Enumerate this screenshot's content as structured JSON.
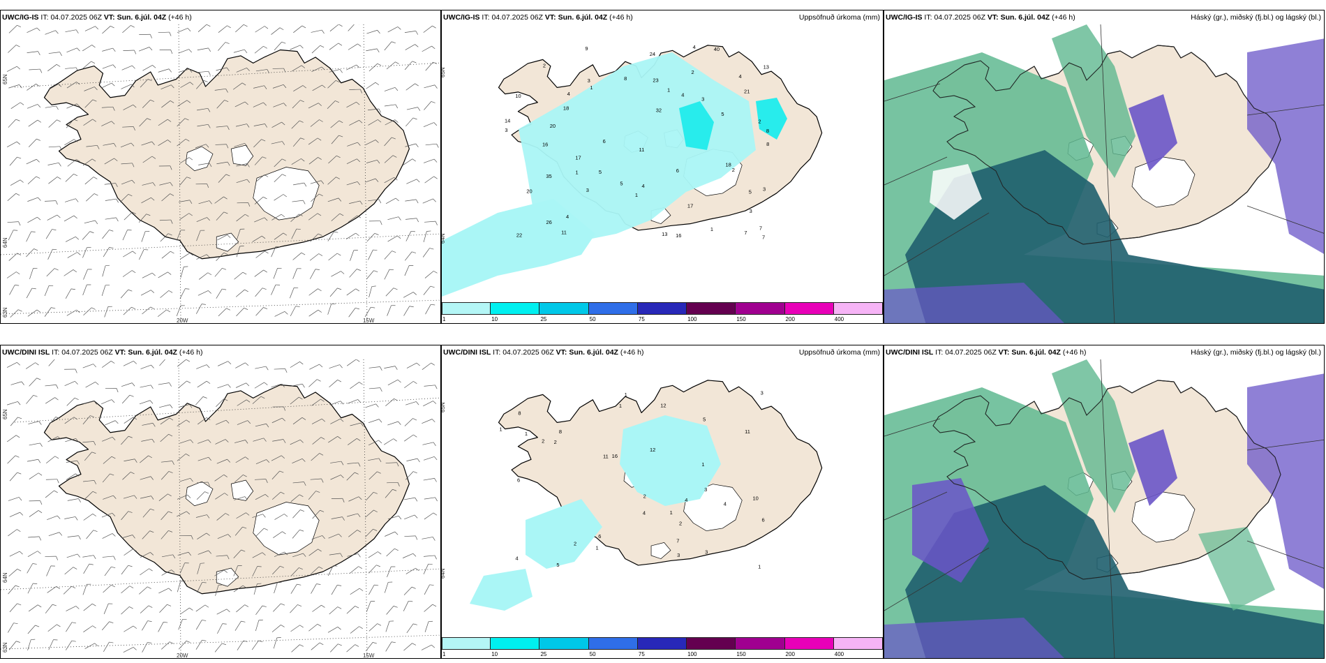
{
  "rows": [
    {
      "model": "UWC/IG-IS",
      "it_prefix": "IT:",
      "it": "04.07.2025 06Z",
      "vt_prefix": "VT:",
      "vt": "Sun. 6.júl. 04Z",
      "lead": "(+46 h)"
    },
    {
      "model": "UWC/DINI ISL",
      "it_prefix": "IT:",
      "it": "04.07.2025 06Z",
      "vt_prefix": "VT:",
      "vt": "Sun. 6.júl. 04Z",
      "lead": "(+46 h)"
    }
  ],
  "precip_title": "Uppsöfnuð úrkoma (mm)",
  "cloud_title": "Háský (gr.), miðský (fj.bl.) og lágský (bl.)",
  "lat_labels": [
    "65N",
    "64N",
    "63N"
  ],
  "lon_labels": [
    "20W",
    "15W"
  ],
  "colorbar": {
    "labels": [
      "1",
      "10",
      "25",
      "50",
      "75",
      "100",
      "150",
      "200",
      "400"
    ],
    "colors": [
      "#b4f6f6",
      "#00f0f0",
      "#00c8e8",
      "#2f6ee8",
      "#2828b8",
      "#640050",
      "#a00090",
      "#e800b8",
      "#f6b4f6"
    ]
  },
  "colors": {
    "land": "#f2e6d7",
    "precip_light": "#aaf6f6",
    "precip_mid": "#28ecec",
    "cloud_high": "#1f5f6e",
    "cloud_mid": "#5fb890",
    "cloud_low": "#6a55c8"
  },
  "precip_numbers_top": [
    "1",
    "2",
    "4",
    "8",
    "6",
    "3",
    "5",
    "4",
    "5",
    "4",
    "18",
    "2",
    "5",
    "3",
    "20",
    "11",
    "17",
    "14",
    "9",
    "8",
    "7",
    "23",
    "26",
    "35",
    "32",
    "40",
    "22",
    "17",
    "13",
    "13",
    "11",
    "7",
    "16",
    "24",
    "20",
    "3",
    "8",
    "6",
    "21",
    "18",
    "16",
    "10",
    "5",
    "4",
    "3",
    "2",
    "1",
    "3",
    "3",
    "4",
    "7",
    "4",
    "1",
    "2",
    "1",
    "1"
  ],
  "precip_numbers_bottom": [
    "1",
    "2",
    "4",
    "3",
    "2",
    "1",
    "7",
    "11",
    "5",
    "3",
    "12",
    "12",
    "16",
    "6",
    "5",
    "10",
    "8",
    "11",
    "4",
    "6",
    "8",
    "6",
    "4",
    "3",
    "2",
    "1",
    "1",
    "2",
    "1",
    "1",
    "1",
    "4",
    "3",
    "2",
    "1"
  ]
}
